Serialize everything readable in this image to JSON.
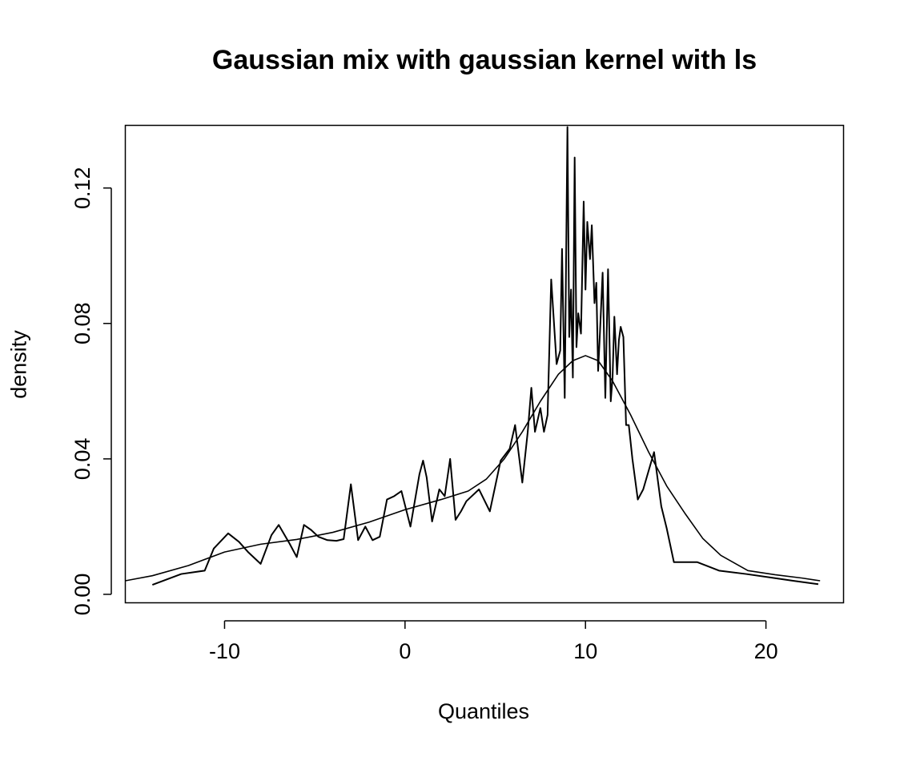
{
  "chart_data": {
    "type": "line",
    "title": "Gaussian mix with gaussian kernel with ls",
    "xlabel": "Quantiles",
    "ylabel": "density",
    "xlim": [
      -15.5,
      24.3
    ],
    "ylim": [
      -0.0025,
      0.1385
    ],
    "xticks": [
      -10,
      0,
      10,
      20
    ],
    "yticks": [
      0.0,
      0.04,
      0.08,
      0.12
    ],
    "ytick_labels": [
      "0.00",
      "0.04",
      "0.08",
      "0.12"
    ],
    "grid": false,
    "legend": "none",
    "series": [
      {
        "x": [
          -14.0,
          -12.4,
          -11.1,
          -10.6,
          -9.8,
          -9.2,
          -8.7,
          -8.0,
          -7.4,
          -7.0,
          -6.4,
          -6.0,
          -5.6,
          -5.2,
          -4.8,
          -4.3,
          -3.8,
          -3.4,
          -3.0,
          -2.6,
          -2.2,
          -1.8,
          -1.4,
          -1.0,
          -0.6,
          -0.2,
          0.3,
          0.8,
          1.0,
          1.2,
          1.5,
          1.9,
          2.2,
          2.5,
          2.8,
          3.1,
          3.4,
          4.1,
          4.7,
          5.0,
          5.3,
          5.8,
          6.1,
          6.5,
          6.8,
          7.0,
          7.2,
          7.5,
          7.7,
          7.9,
          8.1,
          8.4,
          8.5,
          8.6,
          8.7,
          8.85,
          9.0,
          9.1,
          9.2,
          9.3,
          9.4,
          9.5,
          9.6,
          9.75,
          9.9,
          10.0,
          10.1,
          10.25,
          10.35,
          10.5,
          10.6,
          10.7,
          10.8,
          10.95,
          11.1,
          11.25,
          11.4,
          11.5,
          11.6,
          11.75,
          11.85,
          11.95,
          12.1,
          12.25,
          12.4,
          12.6,
          12.9,
          13.2,
          13.8,
          14.2,
          14.5,
          14.9,
          16.2,
          17.4,
          18.9,
          20.2,
          21.5,
          22.9
        ],
        "y": [
          0.0028,
          0.006,
          0.007,
          0.0135,
          0.018,
          0.0155,
          0.0125,
          0.009,
          0.0175,
          0.0205,
          0.015,
          0.011,
          0.0205,
          0.019,
          0.017,
          0.016,
          0.0158,
          0.0163,
          0.0325,
          0.016,
          0.02,
          0.016,
          0.017,
          0.028,
          0.029,
          0.0305,
          0.02,
          0.0355,
          0.0395,
          0.0345,
          0.0215,
          0.031,
          0.029,
          0.04,
          0.022,
          0.0245,
          0.0275,
          0.031,
          0.0245,
          0.032,
          0.0395,
          0.043,
          0.05,
          0.033,
          0.048,
          0.061,
          0.048,
          0.055,
          0.048,
          0.053,
          0.093,
          0.068,
          0.07,
          0.072,
          0.102,
          0.058,
          0.138,
          0.076,
          0.09,
          0.064,
          0.129,
          0.073,
          0.083,
          0.077,
          0.116,
          0.09,
          0.11,
          0.099,
          0.109,
          0.086,
          0.092,
          0.066,
          0.077,
          0.095,
          0.058,
          0.096,
          0.057,
          0.064,
          0.082,
          0.065,
          0.075,
          0.079,
          0.076,
          0.05,
          0.05,
          0.04,
          0.028,
          0.031,
          0.042,
          0.026,
          0.0195,
          0.0095,
          0.0095,
          0.007,
          0.006,
          0.005,
          0.004,
          0.003
        ]
      },
      {
        "x": [
          -15.5,
          -14.0,
          -12.0,
          -10.0,
          -8.0,
          -6.0,
          -4.0,
          -2.0,
          0.0,
          2.0,
          3.5,
          4.5,
          5.5,
          6.5,
          7.5,
          8.5,
          9.3,
          10.0,
          10.7,
          11.5,
          12.5,
          13.5,
          14.5,
          15.5,
          16.5,
          17.5,
          19.0,
          20.5,
          22.0,
          23.0
        ],
        "y": [
          0.004,
          0.0055,
          0.0085,
          0.0125,
          0.0148,
          0.0162,
          0.0183,
          0.0213,
          0.025,
          0.028,
          0.0305,
          0.034,
          0.04,
          0.048,
          0.057,
          0.065,
          0.069,
          0.0705,
          0.069,
          0.063,
          0.053,
          0.042,
          0.032,
          0.024,
          0.0165,
          0.0115,
          0.007,
          0.0058,
          0.0048,
          0.004
        ]
      }
    ]
  }
}
